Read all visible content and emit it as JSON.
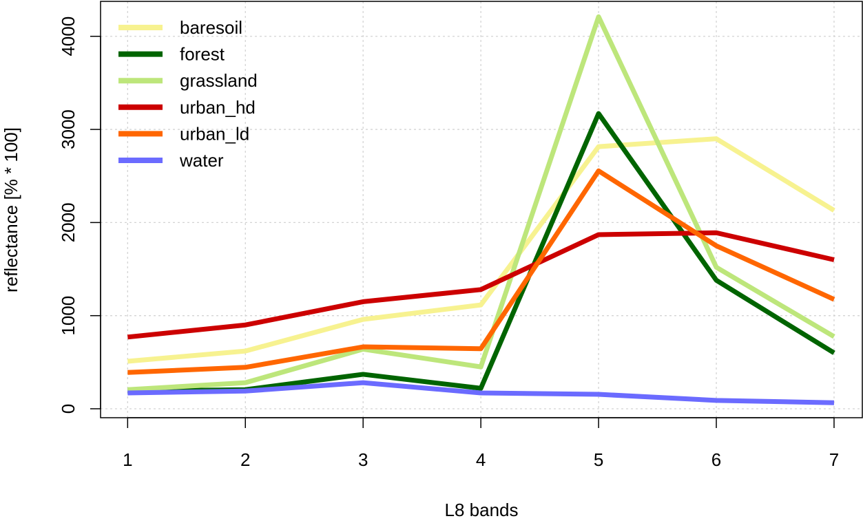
{
  "chart_data": {
    "type": "line",
    "title": "",
    "xlabel": "L8 bands",
    "ylabel": "reflectance [% * 100]",
    "x": [
      1,
      2,
      3,
      4,
      5,
      6,
      7
    ],
    "x_ticks": [
      "1",
      "2",
      "3",
      "4",
      "5",
      "6",
      "7"
    ],
    "y_ticks": [
      "0",
      "1000",
      "2000",
      "3000",
      "4000"
    ],
    "y_tick_values": [
      0,
      1000,
      2000,
      3000,
      4000
    ],
    "xlim": [
      0.77,
      7.24
    ],
    "ylim": [
      -96,
      4375
    ],
    "grid": true,
    "legend_position": "top-left",
    "series": [
      {
        "name": "baresoil",
        "color": "#f7f290",
        "values": [
          510,
          620,
          960,
          1115,
          2815,
          2900,
          2130
        ]
      },
      {
        "name": "forest",
        "color": "#006400",
        "values": [
          190,
          205,
          370,
          220,
          3170,
          1380,
          600
        ]
      },
      {
        "name": "grassland",
        "color": "#bde67b",
        "values": [
          205,
          280,
          640,
          450,
          4210,
          1520,
          775
        ]
      },
      {
        "name": "urban_hd",
        "color": "#cc0000",
        "values": [
          770,
          900,
          1150,
          1280,
          1870,
          1890,
          1600
        ]
      },
      {
        "name": "urban_ld",
        "color": "#ff6600",
        "values": [
          390,
          445,
          665,
          645,
          2555,
          1750,
          1175
        ]
      },
      {
        "name": "water",
        "color": "#6b6bff",
        "values": [
          170,
          190,
          280,
          170,
          155,
          90,
          65
        ]
      }
    ]
  }
}
